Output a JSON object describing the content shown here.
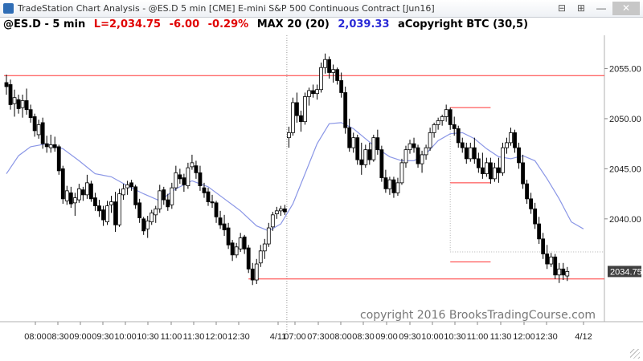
{
  "window": {
    "title": "TradeStation Chart Analysis  - @ES.D 5 min [CME] E-mini S&P 500 Continuous Contract [Jun16]",
    "buttons": [
      "⊟",
      "⊞",
      "—",
      "✕"
    ]
  },
  "header": {
    "symbol": "@ES.D - 5 min",
    "last": "L=2,034.75",
    "change": "-6.00",
    "pct": "-0.29%",
    "ma": "MAX 20 (20)",
    "ma_value": "2,039.33",
    "study": "aCopyright BTC (30,5)"
  },
  "watermark": "copyright 2016 BrooksTradingCourse.com",
  "chart_data": {
    "type": "candlestick",
    "y_axis": {
      "min": 2031.5,
      "max": 2058.0,
      "ticks": [
        2055.0,
        2050.0,
        2045.0,
        2040.0
      ],
      "tick_labels": [
        "2055.00",
        "2050.00",
        "2045.00",
        "2040.00"
      ],
      "position": "right"
    },
    "x_labels": [
      "08:00",
      "08:30",
      "09:00",
      "09:30",
      "10:00",
      "10:30",
      "11:00",
      "11:30",
      "12:00",
      "12:30",
      "4/11",
      "07:00",
      "07:30",
      "08:00",
      "08:30",
      "09:00",
      "09:30",
      "10:00",
      "10:30",
      "11:00",
      "11:30",
      "12:00",
      "12:30",
      "4/12"
    ],
    "last_price_label": "2034.75",
    "last_price": 2034.75,
    "colors": {
      "up": "#ffffff",
      "down": "#000000",
      "ma": "#8a96e6",
      "level": "#ff3333",
      "label_bg": "#404040",
      "grid": "#c9c9c9"
    },
    "grid": false,
    "day_separator_after_bar": 69,
    "horizontal_lines": [
      {
        "y": 2054.3,
        "from_bar": 0,
        "to_bar": 150
      },
      {
        "y": 2034.0,
        "from_bar": 60,
        "to_bar": 150
      },
      {
        "y": 2051.1,
        "from_bar": 110,
        "to_bar": 120
      },
      {
        "y": 2043.6,
        "from_bar": 110,
        "to_bar": 120
      },
      {
        "y": 2035.7,
        "from_bar": 110,
        "to_bar": 120
      }
    ],
    "moving_average": [
      [
        0,
        2044.5
      ],
      [
        3,
        2046.3
      ],
      [
        6,
        2047.2
      ],
      [
        10,
        2047.5
      ],
      [
        14,
        2047.0
      ],
      [
        18,
        2045.8
      ],
      [
        22,
        2044.5
      ],
      [
        26,
        2044.2
      ],
      [
        30,
        2043.3
      ],
      [
        34,
        2042.5
      ],
      [
        38,
        2041.8
      ],
      [
        42,
        2043.0
      ],
      [
        46,
        2043.8
      ],
      [
        50,
        2043.2
      ],
      [
        54,
        2042.0
      ],
      [
        58,
        2040.8
      ],
      [
        62,
        2039.3
      ],
      [
        65,
        2038.8
      ],
      [
        68,
        2039.5
      ],
      [
        71,
        2041.5
      ],
      [
        74,
        2044.5
      ],
      [
        77,
        2047.5
      ],
      [
        80,
        2049.5
      ],
      [
        83,
        2049.6
      ],
      [
        86,
        2049.0
      ],
      [
        89,
        2048.0
      ],
      [
        92,
        2047.0
      ],
      [
        95,
        2046.2
      ],
      [
        98,
        2045.8
      ],
      [
        101,
        2045.8
      ],
      [
        104,
        2046.5
      ],
      [
        107,
        2047.8
      ],
      [
        110,
        2048.5
      ],
      [
        113,
        2048.6
      ],
      [
        116,
        2048.0
      ],
      [
        119,
        2047.0
      ],
      [
        122,
        2046.2
      ],
      [
        125,
        2046.0
      ],
      [
        128,
        2046.3
      ],
      [
        131,
        2045.8
      ],
      [
        134,
        2044.0
      ],
      [
        137,
        2042.0
      ],
      [
        140,
        2039.7
      ],
      [
        143,
        2039.0
      ]
    ],
    "bars": [
      [
        2053.6,
        2054.4,
        2052.4,
        2053.2
      ],
      [
        2053.4,
        2053.9,
        2050.9,
        2051.4
      ],
      [
        2051.5,
        2052.9,
        2050.2,
        2052.1
      ],
      [
        2051.9,
        2052.4,
        2050.5,
        2051.0
      ],
      [
        2051.1,
        2052.4,
        2050.1,
        2051.8
      ],
      [
        2051.8,
        2053.0,
        2050.4,
        2050.9
      ],
      [
        2050.9,
        2051.4,
        2049.6,
        2050.1
      ],
      [
        2050.2,
        2050.5,
        2048.2,
        2048.8
      ],
      [
        2048.4,
        2049.9,
        2048.0,
        2049.4
      ],
      [
        2049.6,
        2050.1,
        2047.0,
        2047.5
      ],
      [
        2047.5,
        2048.3,
        2046.6,
        2047.2
      ],
      [
        2047.1,
        2048.4,
        2046.6,
        2047.4
      ],
      [
        2047.4,
        2048.2,
        2046.7,
        2047.1
      ],
      [
        2047.2,
        2047.4,
        2044.4,
        2044.8
      ],
      [
        2045.0,
        2045.3,
        2041.5,
        2042.0
      ],
      [
        2041.8,
        2043.3,
        2041.4,
        2042.8
      ],
      [
        2042.6,
        2043.2,
        2041.1,
        2041.5
      ],
      [
        2041.6,
        2042.6,
        2040.3,
        2042.1
      ],
      [
        2041.9,
        2043.5,
        2041.6,
        2043.0
      ],
      [
        2042.9,
        2043.2,
        2041.8,
        2042.4
      ],
      [
        2042.4,
        2044.4,
        2042.0,
        2043.6
      ],
      [
        2043.5,
        2043.8,
        2041.7,
        2042.0
      ],
      [
        2042.1,
        2042.6,
        2040.8,
        2041.3
      ],
      [
        2041.3,
        2041.9,
        2040.2,
        2040.8
      ],
      [
        2040.9,
        2041.3,
        2039.3,
        2039.9
      ],
      [
        2039.7,
        2041.8,
        2039.4,
        2041.3
      ],
      [
        2041.4,
        2042.3,
        2040.6,
        2041.7
      ],
      [
        2041.7,
        2042.7,
        2038.7,
        2039.4
      ],
      [
        2039.4,
        2043.0,
        2039.2,
        2042.5
      ],
      [
        2042.4,
        2043.5,
        2041.9,
        2043.0
      ],
      [
        2043.1,
        2043.8,
        2042.4,
        2043.4
      ],
      [
        2043.6,
        2043.9,
        2042.8,
        2043.2
      ],
      [
        2043.2,
        2043.4,
        2041.0,
        2041.4
      ],
      [
        2041.6,
        2042.0,
        2039.6,
        2040.1
      ],
      [
        2040.0,
        2040.2,
        2038.4,
        2038.8
      ],
      [
        2039.0,
        2040.3,
        2038.1,
        2039.8
      ],
      [
        2039.7,
        2040.9,
        2039.4,
        2040.6
      ],
      [
        2040.4,
        2041.3,
        2039.6,
        2041.0
      ],
      [
        2041.0,
        2043.4,
        2040.6,
        2042.8
      ],
      [
        2042.9,
        2043.2,
        2041.4,
        2041.9
      ],
      [
        2041.9,
        2042.5,
        2040.8,
        2041.2
      ],
      [
        2041.4,
        2043.6,
        2041.0,
        2043.1
      ],
      [
        2043.1,
        2045.3,
        2042.8,
        2044.6
      ],
      [
        2044.4,
        2045.0,
        2043.5,
        2044.0
      ],
      [
        2044.1,
        2044.5,
        2042.7,
        2043.4
      ],
      [
        2043.3,
        2045.6,
        2043.0,
        2045.1
      ],
      [
        2045.2,
        2046.4,
        2044.9,
        2045.6
      ],
      [
        2045.3,
        2045.8,
        2044.0,
        2044.6
      ],
      [
        2044.6,
        2045.3,
        2042.8,
        2043.3
      ],
      [
        2043.1,
        2043.6,
        2042.1,
        2042.6
      ],
      [
        2042.7,
        2043.1,
        2041.3,
        2041.7
      ],
      [
        2041.7,
        2042.4,
        2041.1,
        2041.6
      ],
      [
        2041.6,
        2041.8,
        2039.6,
        2040.2
      ],
      [
        2040.1,
        2040.8,
        2039.0,
        2039.4
      ],
      [
        2039.5,
        2040.4,
        2038.3,
        2038.9
      ],
      [
        2039.1,
        2039.6,
        2037.0,
        2037.4
      ],
      [
        2037.6,
        2037.9,
        2035.8,
        2036.4
      ],
      [
        2036.4,
        2037.6,
        2036.1,
        2037.2
      ],
      [
        2037.0,
        2038.6,
        2036.7,
        2038.1
      ],
      [
        2038.2,
        2038.4,
        2036.5,
        2037.0
      ],
      [
        2037.1,
        2037.4,
        2034.6,
        2035.0
      ],
      [
        2035.0,
        2035.6,
        2033.4,
        2033.9
      ],
      [
        2033.9,
        2036.0,
        2033.5,
        2035.5
      ],
      [
        2035.6,
        2037.4,
        2035.2,
        2036.8
      ],
      [
        2036.8,
        2038.0,
        2036.0,
        2037.5
      ],
      [
        2037.5,
        2039.6,
        2037.2,
        2039.1
      ],
      [
        2039.2,
        2040.7,
        2038.8,
        2040.4
      ],
      [
        2040.5,
        2041.2,
        2040.0,
        2040.8
      ],
      [
        2040.8,
        2041.3,
        2040.3,
        2041.0
      ],
      [
        2041.0,
        2041.4,
        2040.4,
        2040.7
      ],
      [
        2048.1,
        2049.2,
        2047.1,
        2048.6
      ],
      [
        2048.6,
        2052.1,
        2048.3,
        2051.6
      ],
      [
        2051.6,
        2052.6,
        2049.6,
        2050.3
      ],
      [
        2050.3,
        2050.8,
        2048.7,
        2049.7
      ],
      [
        2049.7,
        2052.6,
        2049.4,
        2052.2
      ],
      [
        2052.2,
        2053.1,
        2051.3,
        2052.8
      ],
      [
        2052.8,
        2053.4,
        2052.1,
        2052.5
      ],
      [
        2052.5,
        2053.4,
        2051.9,
        2052.9
      ],
      [
        2052.9,
        2055.6,
        2052.6,
        2055.1
      ],
      [
        2055.1,
        2056.5,
        2054.5,
        2055.9
      ],
      [
        2055.9,
        2056.2,
        2054.0,
        2054.6
      ],
      [
        2054.6,
        2055.4,
        2053.6,
        2054.9
      ],
      [
        2054.9,
        2055.1,
        2053.4,
        2053.8
      ],
      [
        2053.8,
        2054.6,
        2052.1,
        2052.6
      ],
      [
        2052.6,
        2053.2,
        2048.5,
        2049.1
      ],
      [
        2049.1,
        2050.0,
        2046.7,
        2047.1
      ],
      [
        2047.1,
        2048.6,
        2046.6,
        2048.1
      ],
      [
        2048.1,
        2048.4,
        2045.4,
        2045.9
      ],
      [
        2045.9,
        2047.6,
        2044.4,
        2045.4
      ],
      [
        2045.4,
        2047.4,
        2045.1,
        2046.9
      ],
      [
        2046.9,
        2047.6,
        2045.4,
        2045.9
      ],
      [
        2045.9,
        2048.4,
        2045.7,
        2048.1
      ],
      [
        2048.1,
        2048.9,
        2046.4,
        2046.9
      ],
      [
        2046.9,
        2047.3,
        2043.7,
        2044.1
      ],
      [
        2044.1,
        2044.9,
        2042.6,
        2043.0
      ],
      [
        2043.0,
        2044.2,
        2042.4,
        2043.9
      ],
      [
        2043.9,
        2044.2,
        2042.1,
        2042.6
      ],
      [
        2042.6,
        2044.1,
        2042.3,
        2043.6
      ],
      [
        2043.6,
        2046.0,
        2043.4,
        2045.6
      ],
      [
        2045.6,
        2047.3,
        2045.1,
        2046.9
      ],
      [
        2046.9,
        2047.9,
        2046.5,
        2047.5
      ],
      [
        2047.5,
        2048.1,
        2046.6,
        2047.1
      ],
      [
        2047.1,
        2047.4,
        2045.1,
        2045.5
      ],
      [
        2045.5,
        2046.8,
        2044.6,
        2046.4
      ],
      [
        2046.4,
        2047.4,
        2045.9,
        2047.1
      ],
      [
        2047.1,
        2049.1,
        2046.8,
        2048.6
      ],
      [
        2048.6,
        2049.6,
        2048.1,
        2049.4
      ],
      [
        2049.4,
        2050.1,
        2048.9,
        2049.8
      ],
      [
        2049.8,
        2050.4,
        2049.3,
        2050.2
      ],
      [
        2050.2,
        2051.4,
        2049.7,
        2050.9
      ],
      [
        2050.9,
        2051.1,
        2048.9,
        2049.4
      ],
      [
        2049.4,
        2050.2,
        2048.3,
        2049.0
      ],
      [
        2049.0,
        2049.3,
        2047.1,
        2047.6
      ],
      [
        2047.6,
        2048.1,
        2046.6,
        2047.1
      ],
      [
        2047.1,
        2047.6,
        2045.5,
        2046.0
      ],
      [
        2046.0,
        2047.6,
        2045.7,
        2047.1
      ],
      [
        2047.1,
        2048.1,
        2045.5,
        2046.0
      ],
      [
        2046.0,
        2046.6,
        2044.6,
        2045.1
      ],
      [
        2045.1,
        2046.6,
        2044.0,
        2044.5
      ],
      [
        2044.5,
        2046.1,
        2044.2,
        2045.6
      ],
      [
        2045.6,
        2046.1,
        2043.5,
        2044.0
      ],
      [
        2044.0,
        2045.6,
        2043.7,
        2045.1
      ],
      [
        2045.1,
        2046.1,
        2043.6,
        2044.6
      ],
      [
        2044.6,
        2047.6,
        2044.3,
        2047.1
      ],
      [
        2047.1,
        2048.1,
        2046.5,
        2047.6
      ],
      [
        2047.6,
        2049.1,
        2047.3,
        2048.6
      ],
      [
        2048.6,
        2048.9,
        2046.6,
        2047.1
      ],
      [
        2047.1,
        2047.6,
        2045.0,
        2045.6
      ],
      [
        2045.6,
        2046.4,
        2043.0,
        2043.5
      ],
      [
        2043.5,
        2043.9,
        2041.5,
        2042.0
      ],
      [
        2042.0,
        2042.6,
        2040.5,
        2041.0
      ],
      [
        2041.0,
        2041.6,
        2039.0,
        2039.5
      ],
      [
        2039.5,
        2040.2,
        2037.5,
        2038.0
      ],
      [
        2038.0,
        2038.6,
        2036.0,
        2036.5
      ],
      [
        2036.5,
        2037.4,
        2035.0,
        2035.5
      ],
      [
        2035.5,
        2036.6,
        2035.2,
        2036.2
      ],
      [
        2036.2,
        2036.5,
        2034.0,
        2034.4
      ],
      [
        2034.4,
        2035.6,
        2033.6,
        2035.0
      ],
      [
        2035.0,
        2035.6,
        2033.9,
        2034.4
      ],
      [
        2034.3,
        2035.2,
        2033.8,
        2034.75
      ]
    ]
  }
}
